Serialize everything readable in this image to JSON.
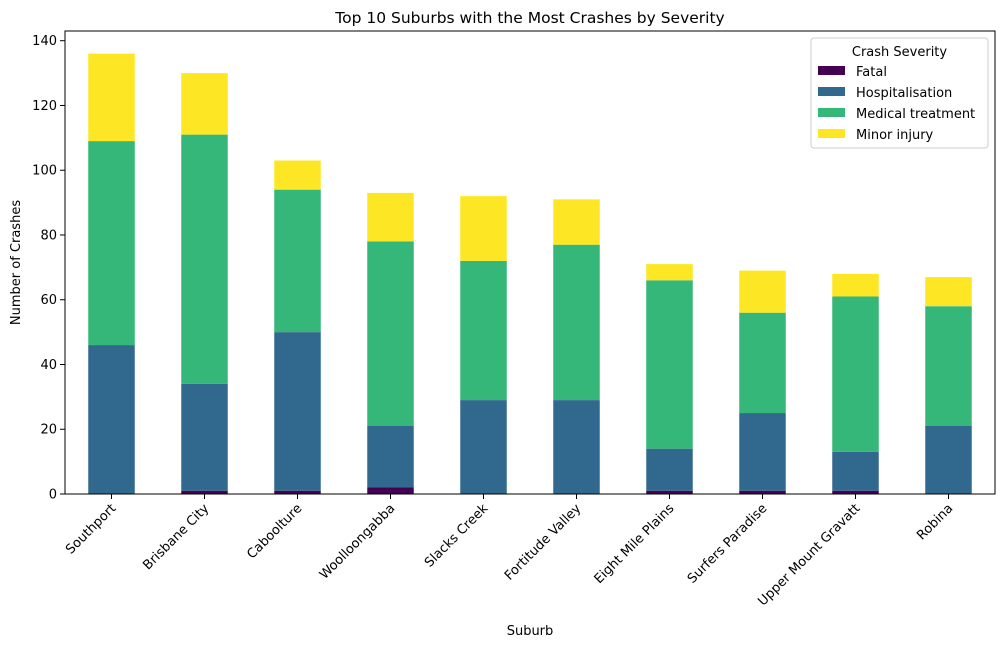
{
  "chart_data": {
    "type": "bar",
    "stacked": true,
    "title": "Top 10 Suburbs with the Most Crashes by Severity",
    "xlabel": "Suburb",
    "ylabel": "Number of Crashes",
    "ylim": [
      0,
      143
    ],
    "yticks": [
      0,
      20,
      40,
      60,
      80,
      100,
      120,
      140
    ],
    "grid": false,
    "legend": {
      "title": "Crash Severity",
      "position": "top-right"
    },
    "categories": [
      "Southport",
      "Brisbane City",
      "Caboolture",
      "Woolloongabba",
      "Slacks Creek",
      "Fortitude Valley",
      "Eight Mile Plains",
      "Surfers Paradise",
      "Upper Mount Gravatt",
      "Robina"
    ],
    "series": [
      {
        "name": "Fatal",
        "color": "#440154",
        "values": [
          0,
          1,
          1,
          2,
          0,
          0,
          1,
          1,
          1,
          0
        ]
      },
      {
        "name": "Hospitalisation",
        "color": "#31688e",
        "values": [
          46,
          33,
          49,
          19,
          29,
          29,
          13,
          24,
          12,
          21
        ]
      },
      {
        "name": "Medical treatment",
        "color": "#35b779",
        "values": [
          63,
          77,
          44,
          57,
          43,
          48,
          52,
          31,
          48,
          37
        ]
      },
      {
        "name": "Minor injury",
        "color": "#fde725",
        "values": [
          27,
          19,
          9,
          15,
          20,
          14,
          5,
          13,
          7,
          9
        ]
      }
    ]
  }
}
